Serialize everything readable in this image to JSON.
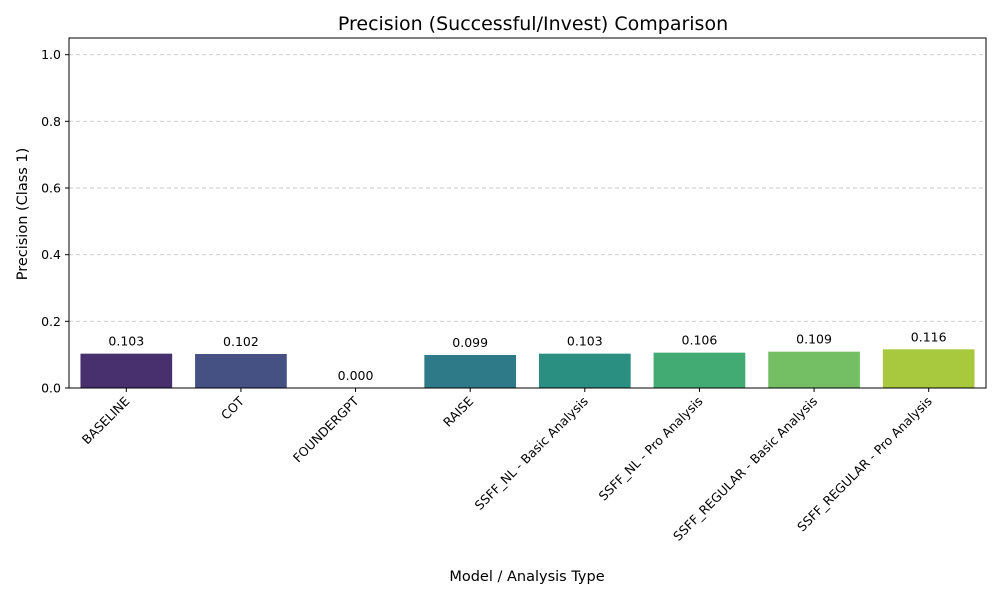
{
  "chart_data": {
    "type": "bar",
    "title": "Precision (Successful/Invest) Comparison",
    "xlabel": "Model / Analysis Type",
    "ylabel": "Precision (Class 1)",
    "categories": [
      "BASELINE",
      "COT",
      "FOUNDERGPT",
      "RAISE",
      "SSFF_NL - Basic Analysis",
      "SSFF_NL - Pro Analysis",
      "SSFF_REGULAR - Basic Analysis",
      "SSFF_REGULAR - Pro Analysis"
    ],
    "values": [
      0.103,
      0.102,
      0.0,
      0.099,
      0.103,
      0.106,
      0.109,
      0.116
    ],
    "value_labels": [
      "0.103",
      "0.102",
      "0.000",
      "0.099",
      "0.103",
      "0.106",
      "0.109",
      "0.116"
    ],
    "colors": [
      "#482f6e",
      "#455083",
      "#3a6d8b",
      "#2f7a88",
      "#2a8f80",
      "#41ab73",
      "#74bf63",
      "#a8c83e"
    ],
    "yticks": [
      0.0,
      0.2,
      0.4,
      0.6,
      0.8,
      1.0
    ],
    "ytick_labels": [
      "0.0",
      "0.2",
      "0.4",
      "0.6",
      "0.8",
      "1.0"
    ],
    "ylim": [
      0,
      1.05
    ],
    "grid": "horizontal dashed",
    "legend": "none"
  }
}
